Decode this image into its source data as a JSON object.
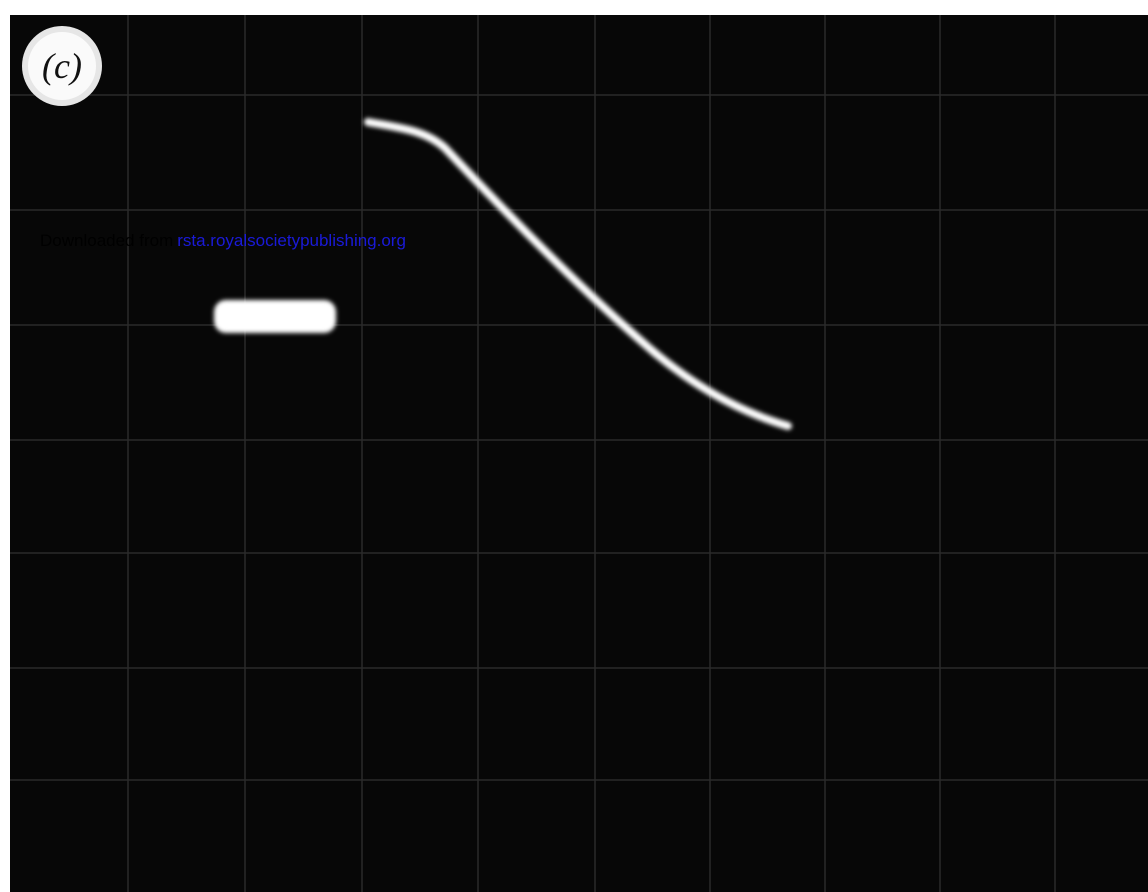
{
  "figure": {
    "panel_label": "(c)"
  },
  "watermark": {
    "prefix": "Downloaded from",
    "link": "rsta.royalsocietypublishing.org"
  }
}
